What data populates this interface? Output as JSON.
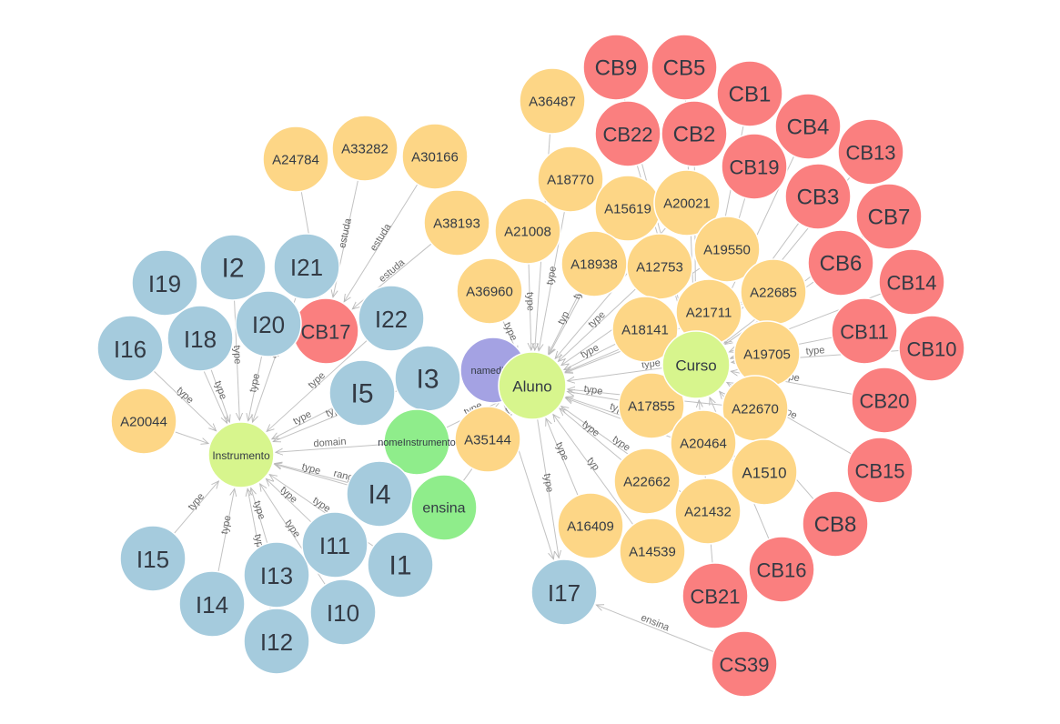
{
  "colors": {
    "background": "#ffffff",
    "instance_blue": "#a5cbdd",
    "instance_orange": "#fdd686",
    "instance_red": "#fa7f7f",
    "class_lime": "#d7f58d",
    "property_green": "#8fed8b",
    "annotation_purple": "#a4a2e3",
    "edge": "#c2c2c2",
    "edge_label": "#666666"
  },
  "nodes": [
    {
      "id": "Instrumento",
      "label": "Instrumento",
      "kind": "class"
    },
    {
      "id": "Aluno",
      "label": "Aluno",
      "kind": "class"
    },
    {
      "id": "Curso",
      "label": "Curso",
      "kind": "class"
    },
    {
      "id": "namedInd",
      "label": "namedInd",
      "kind": "annotation"
    },
    {
      "id": "nomeInstrumento",
      "label": "nomeInstrumento",
      "kind": "property"
    },
    {
      "id": "ensina",
      "label": "ensina",
      "kind": "property"
    },
    {
      "id": "I1",
      "label": "I1",
      "kind": "instrument"
    },
    {
      "id": "I2",
      "label": "I2",
      "kind": "instrument"
    },
    {
      "id": "I3",
      "label": "I3",
      "kind": "instrument"
    },
    {
      "id": "I4",
      "label": "I4",
      "kind": "instrument"
    },
    {
      "id": "I5",
      "label": "I5",
      "kind": "instrument"
    },
    {
      "id": "I10",
      "label": "I10",
      "kind": "instrument"
    },
    {
      "id": "I11",
      "label": "I11",
      "kind": "instrument"
    },
    {
      "id": "I12",
      "label": "I12",
      "kind": "instrument"
    },
    {
      "id": "I13",
      "label": "I13",
      "kind": "instrument"
    },
    {
      "id": "I14",
      "label": "I14",
      "kind": "instrument"
    },
    {
      "id": "I15",
      "label": "I15",
      "kind": "instrument"
    },
    {
      "id": "I16",
      "label": "I16",
      "kind": "instrument"
    },
    {
      "id": "I17",
      "label": "I17",
      "kind": "instrument"
    },
    {
      "id": "I18",
      "label": "I18",
      "kind": "instrument"
    },
    {
      "id": "I19",
      "label": "I19",
      "kind": "instrument"
    },
    {
      "id": "I20",
      "label": "I20",
      "kind": "instrument"
    },
    {
      "id": "I21",
      "label": "I21",
      "kind": "instrument"
    },
    {
      "id": "I22",
      "label": "I22",
      "kind": "instrument"
    },
    {
      "id": "CB1",
      "label": "CB1",
      "kind": "course"
    },
    {
      "id": "CB2",
      "label": "CB2",
      "kind": "course"
    },
    {
      "id": "CB3",
      "label": "CB3",
      "kind": "course"
    },
    {
      "id": "CB4",
      "label": "CB4",
      "kind": "course"
    },
    {
      "id": "CB5",
      "label": "CB5",
      "kind": "course"
    },
    {
      "id": "CB6",
      "label": "CB6",
      "kind": "course"
    },
    {
      "id": "CB7",
      "label": "CB7",
      "kind": "course"
    },
    {
      "id": "CB8",
      "label": "CB8",
      "kind": "course"
    },
    {
      "id": "CB9",
      "label": "CB9",
      "kind": "course"
    },
    {
      "id": "CB10",
      "label": "CB10",
      "kind": "course"
    },
    {
      "id": "CB11",
      "label": "CB11",
      "kind": "course"
    },
    {
      "id": "CB13",
      "label": "CB13",
      "kind": "course"
    },
    {
      "id": "CB14",
      "label": "CB14",
      "kind": "course"
    },
    {
      "id": "CB15",
      "label": "CB15",
      "kind": "course"
    },
    {
      "id": "CB16",
      "label": "CB16",
      "kind": "course"
    },
    {
      "id": "CB17",
      "label": "CB17",
      "kind": "course"
    },
    {
      "id": "CB19",
      "label": "CB19",
      "kind": "course"
    },
    {
      "id": "CB20",
      "label": "CB20",
      "kind": "course"
    },
    {
      "id": "CB21",
      "label": "CB21",
      "kind": "course"
    },
    {
      "id": "CB22",
      "label": "CB22",
      "kind": "course"
    },
    {
      "id": "CS39",
      "label": "CS39",
      "kind": "course"
    },
    {
      "id": "A1510",
      "label": "A1510",
      "kind": "student"
    },
    {
      "id": "A12753",
      "label": "A12753",
      "kind": "student"
    },
    {
      "id": "A14539",
      "label": "A14539",
      "kind": "student"
    },
    {
      "id": "A15619",
      "label": "A15619",
      "kind": "student"
    },
    {
      "id": "A16409",
      "label": "A16409",
      "kind": "student"
    },
    {
      "id": "A17855",
      "label": "A17855",
      "kind": "student"
    },
    {
      "id": "A18141",
      "label": "A18141",
      "kind": "student"
    },
    {
      "id": "A18770",
      "label": "A18770",
      "kind": "student"
    },
    {
      "id": "A18938",
      "label": "A18938",
      "kind": "student"
    },
    {
      "id": "A19550",
      "label": "A19550",
      "kind": "student"
    },
    {
      "id": "A19705",
      "label": "A19705",
      "kind": "student"
    },
    {
      "id": "A20021",
      "label": "A20021",
      "kind": "student"
    },
    {
      "id": "A20044",
      "label": "A20044",
      "kind": "student"
    },
    {
      "id": "A20464",
      "label": "A20464",
      "kind": "student"
    },
    {
      "id": "A21008",
      "label": "A21008",
      "kind": "student"
    },
    {
      "id": "A21432",
      "label": "A21432",
      "kind": "student"
    },
    {
      "id": "A21711",
      "label": "A21711",
      "kind": "student"
    },
    {
      "id": "A22662",
      "label": "A22662",
      "kind": "student"
    },
    {
      "id": "A22670",
      "label": "A22670",
      "kind": "student"
    },
    {
      "id": "A22685",
      "label": "A22685",
      "kind": "student"
    },
    {
      "id": "A24784",
      "label": "A24784",
      "kind": "student"
    },
    {
      "id": "A30166",
      "label": "A30166",
      "kind": "student"
    },
    {
      "id": "A33282",
      "label": "A33282",
      "kind": "student"
    },
    {
      "id": "A35144",
      "label": "A35144",
      "kind": "student"
    },
    {
      "id": "A36487",
      "label": "A36487",
      "kind": "student"
    },
    {
      "id": "A36960",
      "label": "A36960",
      "kind": "student"
    },
    {
      "id": "A38193",
      "label": "A38193",
      "kind": "student"
    }
  ],
  "edges": [
    {
      "from": "I1",
      "to": "Instrumento",
      "label": "type"
    },
    {
      "from": "I2",
      "to": "Instrumento",
      "label": "type"
    },
    {
      "from": "I3",
      "to": "Instrumento",
      "label": "type"
    },
    {
      "from": "I4",
      "to": "Instrumento",
      "label": "type"
    },
    {
      "from": "I5",
      "to": "Instrumento",
      "label": "type"
    },
    {
      "from": "I10",
      "to": "Instrumento",
      "label": "type"
    },
    {
      "from": "I11",
      "to": "Instrumento",
      "label": "type"
    },
    {
      "from": "I12",
      "to": "Instrumento",
      "label": "type"
    },
    {
      "from": "I13",
      "to": "Instrumento",
      "label": "type"
    },
    {
      "from": "I14",
      "to": "Instrumento",
      "label": "type"
    },
    {
      "from": "I15",
      "to": "Instrumento",
      "label": "type"
    },
    {
      "from": "I16",
      "to": "Instrumento",
      "label": "type"
    },
    {
      "from": "I18",
      "to": "Instrumento",
      "label": "type"
    },
    {
      "from": "I19",
      "to": "Instrumento",
      "label": "a"
    },
    {
      "from": "I20",
      "to": "Instrumento",
      "label": "type"
    },
    {
      "from": "I21",
      "to": "Instrumento",
      "label": "ty"
    },
    {
      "from": "I22",
      "to": "Instrumento",
      "label": "type"
    },
    {
      "from": "nomeInstrumento",
      "to": "Instrumento",
      "label": "domain"
    },
    {
      "from": "ensina",
      "to": "Instrumento",
      "label": "rang"
    },
    {
      "from": "A20044",
      "to": "Instrumento",
      "label": ""
    },
    {
      "from": "A24784",
      "to": "CB17",
      "label": "a"
    },
    {
      "from": "A33282",
      "to": "CB17",
      "label": "estuda"
    },
    {
      "from": "A30166",
      "to": "CB17",
      "label": "estuda"
    },
    {
      "from": "A38193",
      "to": "CB17",
      "label": "estuda"
    },
    {
      "from": "A36487",
      "to": "Aluno",
      "label": ""
    },
    {
      "from": "A18770",
      "to": "Aluno",
      "label": "type"
    },
    {
      "from": "A21008",
      "to": "Aluno",
      "label": "type"
    },
    {
      "from": "A15619",
      "to": "Aluno",
      "label": "type"
    },
    {
      "from": "A18938",
      "to": "Aluno",
      "label": "typ"
    },
    {
      "from": "A36960",
      "to": "Aluno",
      "label": "type"
    },
    {
      "from": "A12753",
      "to": "Aluno",
      "label": "type"
    },
    {
      "from": "A20021",
      "to": "Aluno",
      "label": ""
    },
    {
      "from": "A18141",
      "to": "Aluno",
      "label": "type"
    },
    {
      "from": "A19550",
      "to": "Aluno",
      "label": "typ"
    },
    {
      "from": "A21711",
      "to": "Aluno",
      "label": ""
    },
    {
      "from": "A22685",
      "to": "Aluno",
      "label": "type"
    },
    {
      "from": "A19705",
      "to": "Aluno",
      "label": "type"
    },
    {
      "from": "A17855",
      "to": "Aluno",
      "label": "type"
    },
    {
      "from": "A22670",
      "to": "Aluno",
      "label": "ty"
    },
    {
      "from": "A20464",
      "to": "Aluno",
      "label": "type"
    },
    {
      "from": "A1510",
      "to": "Aluno",
      "label": "ty"
    },
    {
      "from": "A22662",
      "to": "Aluno",
      "label": "type"
    },
    {
      "from": "A21432",
      "to": "Aluno",
      "label": "type"
    },
    {
      "from": "A16409",
      "to": "Aluno",
      "label": "type"
    },
    {
      "from": "A14539",
      "to": "Aluno",
      "label": "typ"
    },
    {
      "from": "A35144",
      "to": "Aluno",
      "label": "type"
    },
    {
      "from": "CB1",
      "to": "Curso",
      "label": ""
    },
    {
      "from": "CB2",
      "to": "Curso",
      "label": ""
    },
    {
      "from": "CB3",
      "to": "Curso",
      "label": "type"
    },
    {
      "from": "CB4",
      "to": "Curso",
      "label": ""
    },
    {
      "from": "CB5",
      "to": "Curso",
      "label": ""
    },
    {
      "from": "CB6",
      "to": "Curso",
      "label": "type"
    },
    {
      "from": "CB7",
      "to": "Curso",
      "label": ""
    },
    {
      "from": "CB9",
      "to": "Curso",
      "label": ""
    },
    {
      "from": "CB10",
      "to": "Curso",
      "label": "type"
    },
    {
      "from": "CB11",
      "to": "Curso",
      "label": "type"
    },
    {
      "from": "CB13",
      "to": "Curso",
      "label": ""
    },
    {
      "from": "CB14",
      "to": "Curso",
      "label": ""
    },
    {
      "from": "CB15",
      "to": "Curso",
      "label": "ype"
    },
    {
      "from": "CB19",
      "to": "Curso",
      "label": ""
    },
    {
      "from": "CB20",
      "to": "Curso",
      "label": "ype"
    },
    {
      "from": "CB22",
      "to": "Curso",
      "label": ""
    },
    {
      "from": "CB8",
      "to": "Curso",
      "label": ""
    },
    {
      "from": "CB16",
      "to": "Curso",
      "label": ""
    },
    {
      "from": "CB21",
      "to": "Curso",
      "label": ""
    },
    {
      "from": "Aluno",
      "to": "I17",
      "label": "type"
    },
    {
      "from": "namedInd",
      "to": "I17",
      "label": ""
    },
    {
      "from": "CS39",
      "to": "I17",
      "label": "ensina"
    },
    {
      "from": "nomeInstrumento",
      "to": "Aluno",
      "label": "type"
    },
    {
      "from": "ensina",
      "to": "Aluno",
      "label": ""
    }
  ]
}
